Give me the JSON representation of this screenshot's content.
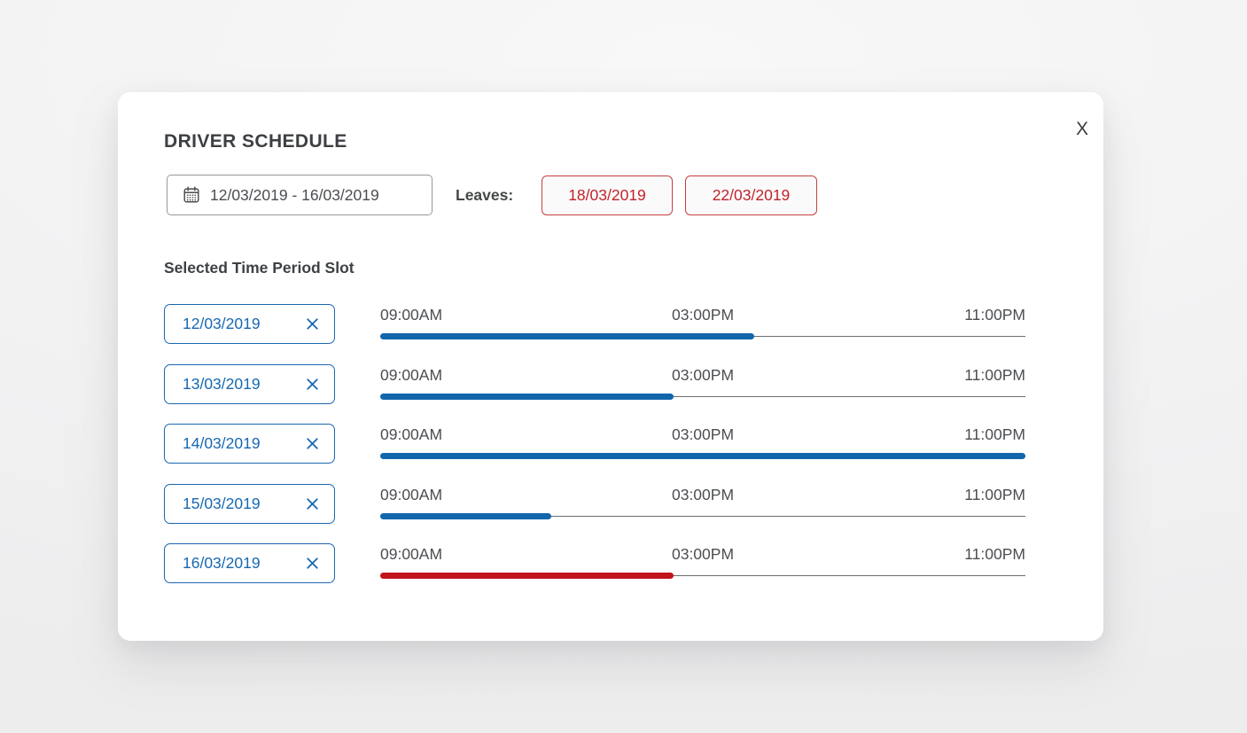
{
  "colors": {
    "accent_blue": "#1266ac",
    "accent_red": "#c0151b",
    "chip_border_blue": "#1a67b0",
    "leave_border_red": "#c5403f",
    "track_gray": "#6e6e6e",
    "text_dark": "#3d4043",
    "modal_bg": "#ffffff",
    "page_bg": "#f2f2f3"
  },
  "modal": {
    "title": "DRIVER SCHEDULE",
    "close_label": "X"
  },
  "controls": {
    "date_range": {
      "value": "12/03/2019 - 16/03/2019",
      "icon": "calendar-icon"
    },
    "leaves_label": "Leaves:",
    "leaves": [
      {
        "date": "18/03/2019"
      },
      {
        "date": "22/03/2019"
      }
    ]
  },
  "schedule": {
    "heading": "Selected Time Period Slot",
    "time_labels": [
      "09:00AM",
      "03:00PM",
      "11:00PM"
    ],
    "rows": [
      {
        "date": "12/03/2019",
        "fill_percent": 58,
        "color": "#1266ac"
      },
      {
        "date": "13/03/2019",
        "fill_percent": 45.5,
        "color": "#1266ac"
      },
      {
        "date": "14/03/2019",
        "fill_percent": 100,
        "color": "#1266ac"
      },
      {
        "date": "15/03/2019",
        "fill_percent": 26.5,
        "color": "#1266ac"
      },
      {
        "date": "16/03/2019",
        "fill_percent": 45.5,
        "color": "#c0151b"
      }
    ]
  }
}
